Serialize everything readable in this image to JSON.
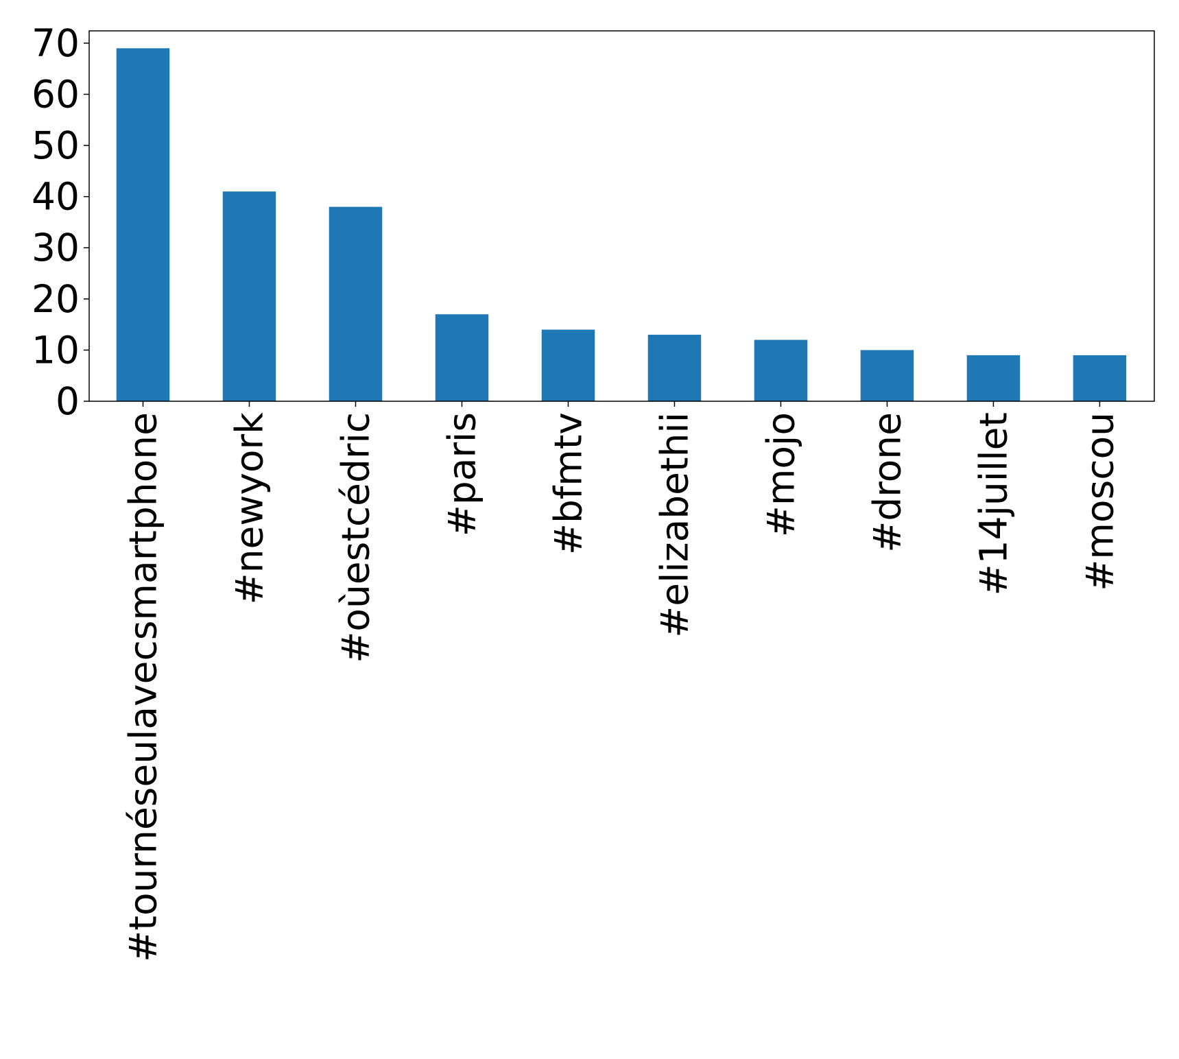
{
  "chart_data": {
    "type": "bar",
    "title": "",
    "xlabel": "",
    "ylabel": "",
    "categories": [
      "#tournéseulavecsmartphone",
      "#newyork",
      "#oùestcédric",
      "#paris",
      "#bfmtv",
      "#elizabethii",
      "#mojo",
      "#drone",
      "#14juillet",
      "#moscou"
    ],
    "values": [
      69,
      41,
      38,
      17,
      14,
      13,
      12,
      10,
      9,
      9
    ],
    "ylim": [
      0,
      72.4
    ],
    "yticks": [
      0,
      10,
      20,
      30,
      40,
      50,
      60,
      70
    ],
    "grid": false,
    "legend": "none",
    "bar_color": "#1f77b4"
  }
}
